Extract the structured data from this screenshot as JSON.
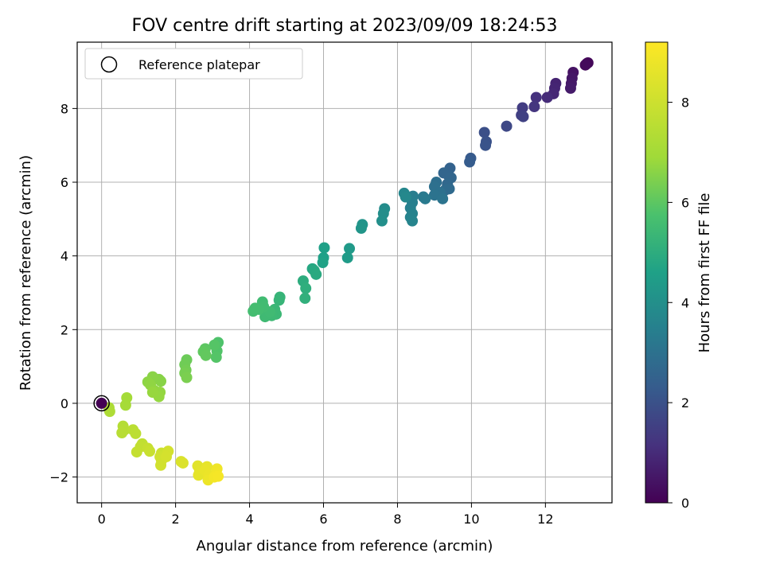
{
  "chart_data": {
    "type": "scatter",
    "title": "FOV centre drift starting at 2023/09/09 18:24:53",
    "xlabel": "Angular distance from reference (arcmin)",
    "ylabel": "Rotation from reference (arcmin)",
    "xlim": [
      -0.66,
      13.8
    ],
    "ylim": [
      -2.7,
      9.8
    ],
    "xticks": [
      0,
      2,
      4,
      6,
      8,
      10,
      12
    ],
    "yticks": [
      -2,
      0,
      2,
      4,
      6,
      8
    ],
    "grid": true,
    "legend": {
      "placement": "upper-left",
      "entries": [
        "Reference platepar"
      ]
    },
    "colorbar": {
      "label": "Hours from first FF file",
      "range": [
        0,
        9.2
      ],
      "ticks": [
        0,
        2,
        4,
        6,
        8
      ],
      "colormap": "viridis"
    },
    "reference_point": {
      "x": 0,
      "y": 0
    },
    "points": [
      {
        "x": 13.12,
        "y": 9.22,
        "c": 0.1
      },
      {
        "x": 13.15,
        "y": 9.24,
        "c": 0.15
      },
      {
        "x": 13.08,
        "y": 9.18,
        "c": 0.2
      },
      {
        "x": 12.75,
        "y": 8.98,
        "c": 0.4
      },
      {
        "x": 12.72,
        "y": 8.82,
        "c": 0.5
      },
      {
        "x": 12.7,
        "y": 8.68,
        "c": 0.55
      },
      {
        "x": 12.68,
        "y": 8.55,
        "c": 0.6
      },
      {
        "x": 12.28,
        "y": 8.68,
        "c": 0.8
      },
      {
        "x": 12.25,
        "y": 8.55,
        "c": 0.85
      },
      {
        "x": 12.22,
        "y": 8.4,
        "c": 0.9
      },
      {
        "x": 12.05,
        "y": 8.3,
        "c": 1.0
      },
      {
        "x": 11.75,
        "y": 8.3,
        "c": 1.15
      },
      {
        "x": 11.7,
        "y": 8.05,
        "c": 1.25
      },
      {
        "x": 11.38,
        "y": 8.02,
        "c": 1.45
      },
      {
        "x": 11.35,
        "y": 7.82,
        "c": 1.5
      },
      {
        "x": 11.4,
        "y": 7.78,
        "c": 1.55
      },
      {
        "x": 10.95,
        "y": 7.52,
        "c": 1.75
      },
      {
        "x": 10.35,
        "y": 7.35,
        "c": 1.95
      },
      {
        "x": 10.4,
        "y": 7.1,
        "c": 2.0
      },
      {
        "x": 10.38,
        "y": 7.0,
        "c": 2.05
      },
      {
        "x": 9.98,
        "y": 6.65,
        "c": 2.25
      },
      {
        "x": 9.95,
        "y": 6.55,
        "c": 2.3
      },
      {
        "x": 9.42,
        "y": 6.38,
        "c": 2.5
      },
      {
        "x": 9.38,
        "y": 6.18,
        "c": 2.55
      },
      {
        "x": 9.25,
        "y": 6.25,
        "c": 2.6
      },
      {
        "x": 9.45,
        "y": 6.12,
        "c": 2.62
      },
      {
        "x": 9.35,
        "y": 5.95,
        "c": 2.7
      },
      {
        "x": 9.4,
        "y": 5.82,
        "c": 2.75
      },
      {
        "x": 9.28,
        "y": 5.78,
        "c": 2.8
      },
      {
        "x": 9.05,
        "y": 6.0,
        "c": 2.9
      },
      {
        "x": 9.0,
        "y": 5.88,
        "c": 2.95
      },
      {
        "x": 9.15,
        "y": 5.72,
        "c": 3.0
      },
      {
        "x": 9.0,
        "y": 5.65,
        "c": 3.05
      },
      {
        "x": 9.22,
        "y": 5.55,
        "c": 3.1
      },
      {
        "x": 8.7,
        "y": 5.6,
        "c": 3.25
      },
      {
        "x": 8.75,
        "y": 5.55,
        "c": 3.3
      },
      {
        "x": 8.42,
        "y": 5.62,
        "c": 3.4
      },
      {
        "x": 8.4,
        "y": 5.45,
        "c": 3.45
      },
      {
        "x": 8.35,
        "y": 5.3,
        "c": 3.5
      },
      {
        "x": 8.4,
        "y": 5.15,
        "c": 3.55
      },
      {
        "x": 8.35,
        "y": 5.05,
        "c": 3.6
      },
      {
        "x": 8.4,
        "y": 4.95,
        "c": 3.62
      },
      {
        "x": 8.18,
        "y": 5.7,
        "c": 3.7
      },
      {
        "x": 8.22,
        "y": 5.6,
        "c": 3.75
      },
      {
        "x": 7.65,
        "y": 5.28,
        "c": 3.9
      },
      {
        "x": 7.62,
        "y": 5.15,
        "c": 3.95
      },
      {
        "x": 7.58,
        "y": 4.95,
        "c": 4.0
      },
      {
        "x": 7.05,
        "y": 4.85,
        "c": 4.15
      },
      {
        "x": 7.02,
        "y": 4.75,
        "c": 4.2
      },
      {
        "x": 6.7,
        "y": 4.2,
        "c": 4.35
      },
      {
        "x": 6.65,
        "y": 3.95,
        "c": 4.4
      },
      {
        "x": 6.02,
        "y": 4.22,
        "c": 4.55
      },
      {
        "x": 6.0,
        "y": 3.95,
        "c": 4.6
      },
      {
        "x": 5.98,
        "y": 3.82,
        "c": 4.65
      },
      {
        "x": 5.7,
        "y": 3.65,
        "c": 4.8
      },
      {
        "x": 5.75,
        "y": 3.6,
        "c": 4.85
      },
      {
        "x": 5.8,
        "y": 3.5,
        "c": 4.9
      },
      {
        "x": 5.45,
        "y": 3.32,
        "c": 5.0
      },
      {
        "x": 5.52,
        "y": 3.12,
        "c": 5.05
      },
      {
        "x": 5.5,
        "y": 2.85,
        "c": 5.1
      },
      {
        "x": 4.82,
        "y": 2.88,
        "c": 5.25
      },
      {
        "x": 4.8,
        "y": 2.8,
        "c": 5.28
      },
      {
        "x": 4.68,
        "y": 2.55,
        "c": 5.35
      },
      {
        "x": 4.72,
        "y": 2.42,
        "c": 5.4
      },
      {
        "x": 4.6,
        "y": 2.38,
        "c": 5.42
      },
      {
        "x": 4.45,
        "y": 2.45,
        "c": 5.45
      },
      {
        "x": 4.42,
        "y": 2.35,
        "c": 5.48
      },
      {
        "x": 4.55,
        "y": 2.48,
        "c": 5.5
      },
      {
        "x": 4.35,
        "y": 2.75,
        "c": 5.52
      },
      {
        "x": 4.38,
        "y": 2.62,
        "c": 5.55
      },
      {
        "x": 4.25,
        "y": 2.55,
        "c": 5.58
      },
      {
        "x": 4.1,
        "y": 2.5,
        "c": 5.6
      },
      {
        "x": 4.15,
        "y": 2.58,
        "c": 5.62
      },
      {
        "x": 3.15,
        "y": 1.65,
        "c": 5.8
      },
      {
        "x": 3.12,
        "y": 1.42,
        "c": 5.85
      },
      {
        "x": 3.1,
        "y": 1.25,
        "c": 5.88
      },
      {
        "x": 3.05,
        "y": 1.58,
        "c": 5.9
      },
      {
        "x": 2.8,
        "y": 1.48,
        "c": 6.0
      },
      {
        "x": 2.75,
        "y": 1.4,
        "c": 6.05
      },
      {
        "x": 2.82,
        "y": 1.3,
        "c": 6.08
      },
      {
        "x": 2.3,
        "y": 1.18,
        "c": 6.2
      },
      {
        "x": 2.25,
        "y": 1.05,
        "c": 6.25
      },
      {
        "x": 2.28,
        "y": 0.9,
        "c": 6.3
      },
      {
        "x": 2.25,
        "y": 0.82,
        "c": 6.35
      },
      {
        "x": 2.3,
        "y": 0.7,
        "c": 6.4
      },
      {
        "x": 1.55,
        "y": 0.65,
        "c": 6.55
      },
      {
        "x": 1.6,
        "y": 0.6,
        "c": 6.58
      },
      {
        "x": 1.38,
        "y": 0.72,
        "c": 6.6
      },
      {
        "x": 1.25,
        "y": 0.58,
        "c": 6.65
      },
      {
        "x": 1.32,
        "y": 0.5,
        "c": 6.68
      },
      {
        "x": 1.42,
        "y": 0.35,
        "c": 6.7
      },
      {
        "x": 1.58,
        "y": 0.3,
        "c": 6.72
      },
      {
        "x": 1.55,
        "y": 0.18,
        "c": 6.75
      },
      {
        "x": 1.38,
        "y": 0.3,
        "c": 6.78
      },
      {
        "x": 0.68,
        "y": 0.15,
        "c": 7.0
      },
      {
        "x": 0.65,
        "y": -0.05,
        "c": 7.05
      },
      {
        "x": 0.2,
        "y": -0.12,
        "c": 7.2
      },
      {
        "x": 0.22,
        "y": -0.22,
        "c": 7.25
      },
      {
        "x": 0.58,
        "y": -0.62,
        "c": 7.4
      },
      {
        "x": 0.62,
        "y": -0.72,
        "c": 7.45
      },
      {
        "x": 0.55,
        "y": -0.8,
        "c": 7.5
      },
      {
        "x": 0.85,
        "y": -0.72,
        "c": 7.55
      },
      {
        "x": 0.92,
        "y": -0.82,
        "c": 7.6
      },
      {
        "x": 1.1,
        "y": -1.1,
        "c": 7.7
      },
      {
        "x": 1.05,
        "y": -1.18,
        "c": 7.75
      },
      {
        "x": 0.95,
        "y": -1.32,
        "c": 7.8
      },
      {
        "x": 1.25,
        "y": -1.22,
        "c": 7.85
      },
      {
        "x": 1.3,
        "y": -1.3,
        "c": 7.88
      },
      {
        "x": 1.62,
        "y": -1.35,
        "c": 8.0
      },
      {
        "x": 1.58,
        "y": -1.45,
        "c": 8.05
      },
      {
        "x": 1.62,
        "y": -1.55,
        "c": 8.08
      },
      {
        "x": 1.6,
        "y": -1.68,
        "c": 8.1
      },
      {
        "x": 1.8,
        "y": -1.3,
        "c": 8.15
      },
      {
        "x": 1.75,
        "y": -1.45,
        "c": 8.18
      },
      {
        "x": 2.15,
        "y": -1.58,
        "c": 8.3
      },
      {
        "x": 2.2,
        "y": -1.62,
        "c": 8.35
      },
      {
        "x": 2.6,
        "y": -1.7,
        "c": 8.5
      },
      {
        "x": 2.65,
        "y": -1.85,
        "c": 8.55
      },
      {
        "x": 2.62,
        "y": -1.95,
        "c": 8.6
      },
      {
        "x": 2.85,
        "y": -1.72,
        "c": 8.65
      },
      {
        "x": 2.8,
        "y": -1.82,
        "c": 8.7
      },
      {
        "x": 2.9,
        "y": -1.95,
        "c": 8.75
      },
      {
        "x": 2.88,
        "y": -2.08,
        "c": 8.8
      },
      {
        "x": 3.12,
        "y": -1.78,
        "c": 8.85
      },
      {
        "x": 3.1,
        "y": -1.92,
        "c": 8.9
      },
      {
        "x": 3.05,
        "y": -2.0,
        "c": 8.95
      },
      {
        "x": 3.15,
        "y": -1.98,
        "c": 9.0
      }
    ]
  }
}
